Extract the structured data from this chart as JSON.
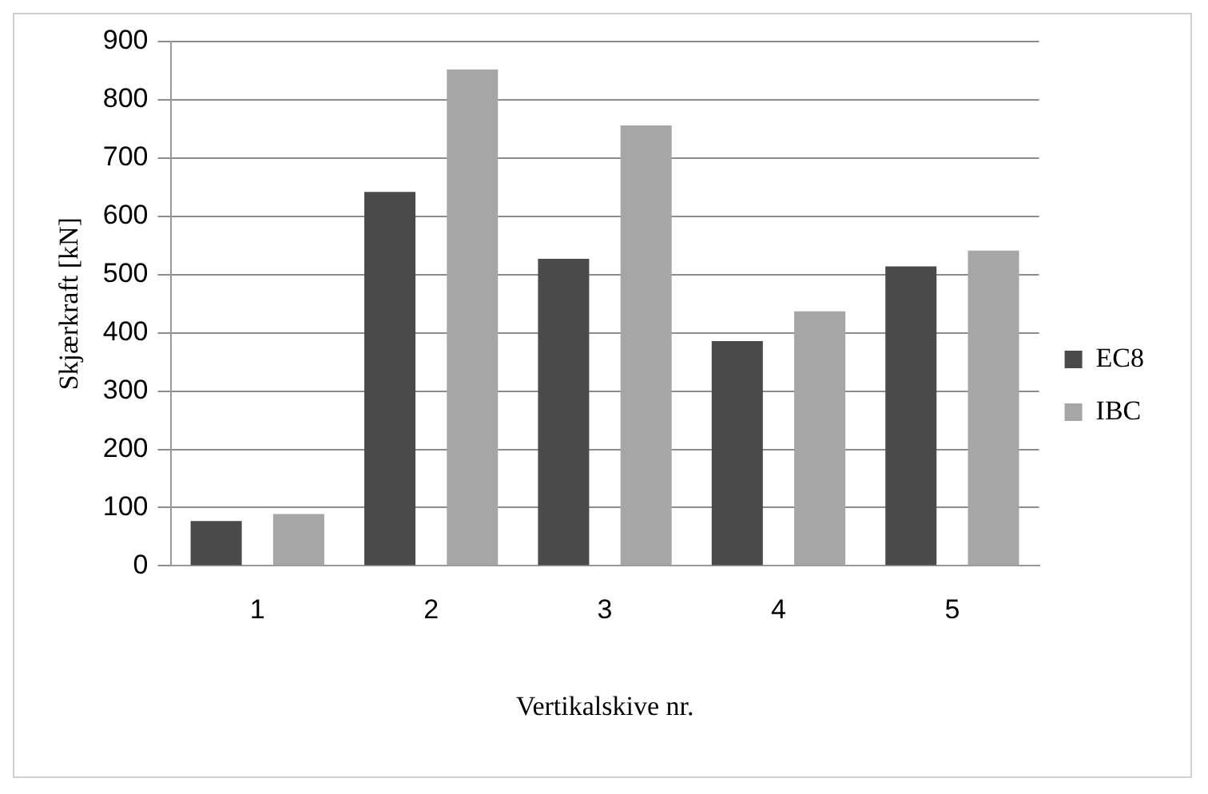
{
  "chart_data": {
    "type": "bar",
    "xlabel": "Vertikalskive nr.",
    "ylabel": "Skjærkraft [kN]",
    "categories": [
      "1",
      "2",
      "3",
      "4",
      "5"
    ],
    "series": [
      {
        "name": "EC8",
        "color": "#4a4a4a",
        "values": [
          77,
          642,
          527,
          386,
          514
        ]
      },
      {
        "name": "IBC",
        "color": "#a6a6a6",
        "values": [
          89,
          852,
          756,
          437,
          541
        ]
      }
    ],
    "ylim": [
      0,
      900
    ],
    "yticks": [
      0,
      100,
      200,
      300,
      400,
      500,
      600,
      700,
      800,
      900
    ],
    "grid": "y",
    "legend": "right"
  }
}
